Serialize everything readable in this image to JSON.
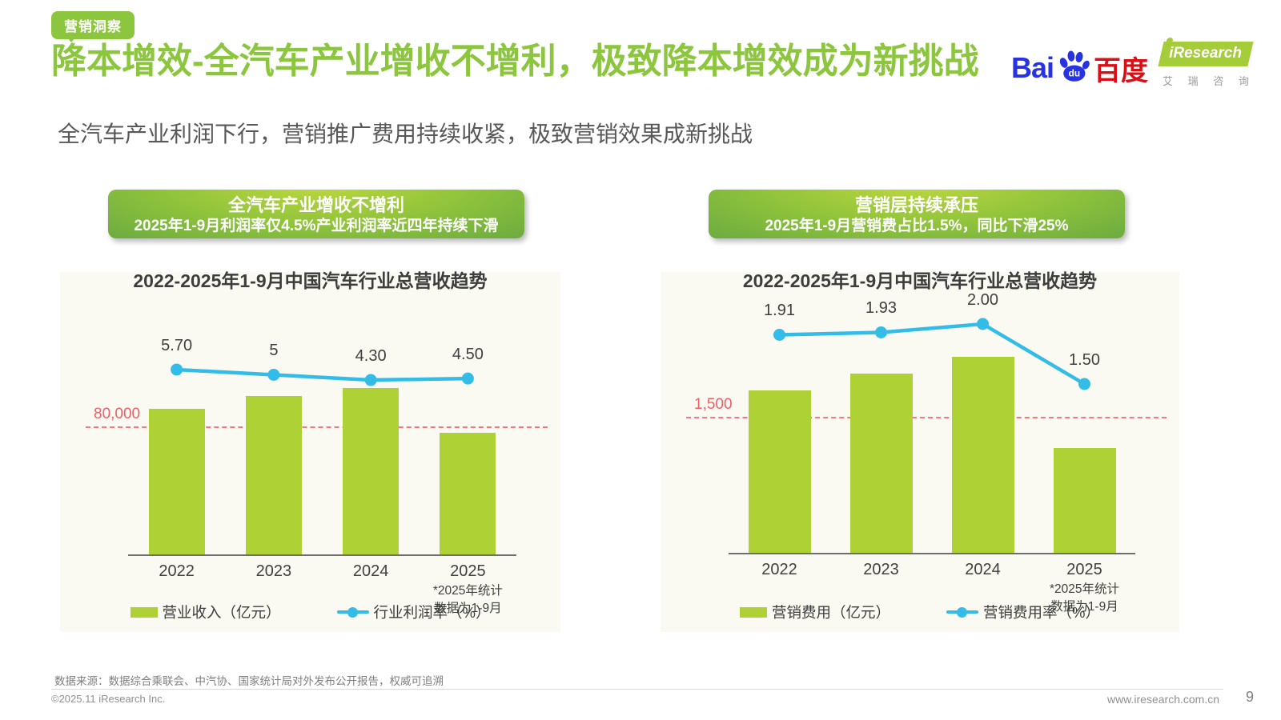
{
  "page": {
    "badge": "营销洞察",
    "title": "降本增效-全汽车产业增收不增利，极致降本增效成为新挑战",
    "subtitle": "全汽车产业利润下行，营销推广费用持续收紧，极致营销效果成新挑战",
    "source_note": "数据来源：数据综合乘联会、中汽协、国家统计局对外发布公开报告，权威可追溯",
    "copyright": "©2025.11 iResearch Inc.",
    "website": "www.iresearch.com.cn",
    "page_number": "9"
  },
  "logos": {
    "baidu": {
      "bai": "Bai",
      "du": "du",
      "cn": "百度"
    },
    "iresearch": {
      "name": "iResearch",
      "cn": [
        "艾",
        "瑞",
        "咨",
        "询"
      ]
    }
  },
  "colors": {
    "accent_green": "#8cc63e",
    "header_gradient_top": "#bcd73e",
    "header_gradient_bottom": "#6cab40",
    "panel_bg": "#fafaf2",
    "bar_green": "#aed136",
    "line_cyan": "#33bce8",
    "ref_dash_pink": "#f4787f",
    "ref_label_red": "#ee5f68",
    "baidu_blue": "#2732e0",
    "baidu_red": "#db0e16",
    "iresearch_green": "#a5cd39"
  },
  "panels": [
    {
      "header_line1": "全汽车产业增收不增利",
      "header_line2": "2025年1-9月利润率仅4.5%产业利润率近四年持续下滑",
      "chart_title": "2022-2025年1-9月中国汽车行业总营收趋势",
      "footnote_line1": "*2025年统计",
      "footnote_line2": "数据为1-9月",
      "legend_bar": "营业收入（亿元）",
      "legend_line": "行业利润率（%）"
    },
    {
      "header_line1": "营销层持续承压",
      "header_line2": "2025年1-9月营销费占比1.5%，同比下滑25%",
      "chart_title": "2022-2025年1-9月中国汽车行业总营收趋势",
      "footnote_line1": "*2025年统计",
      "footnote_line2": "数据为1-9月",
      "legend_bar": "营销费用（亿元）",
      "legend_line": "营销费用率（%）"
    }
  ],
  "chart_data": [
    {
      "type": "bar",
      "combo": "bar+line",
      "title": "2022-2025年1-9月中国汽车行业总营收趋势",
      "categories": [
        "2022",
        "2023",
        "2024",
        "2025"
      ],
      "bar_series": {
        "name": "营业收入（亿元）",
        "values_estimated": [
          91000,
          99000,
          104000,
          76000
        ],
        "note": "bars unlabeled in chart; values estimated from the 80,000 reference line"
      },
      "line_series": {
        "name": "行业利润率（%）",
        "values": [
          5.7,
          5,
          4.3,
          4.5
        ],
        "labels": [
          "5.70",
          "5",
          "4.30",
          "4.50"
        ]
      },
      "ref_line": {
        "value": 80000,
        "label": "80,000"
      },
      "footnote": "*2025年统计数据为1-9月",
      "legend_position": "bottom",
      "grid": false
    },
    {
      "type": "bar",
      "combo": "bar+line",
      "title": "2022-2025年1-9月中国汽车行业总营收趋势",
      "categories": [
        "2022",
        "2023",
        "2024",
        "2025"
      ],
      "bar_series": {
        "name": "营销费用（亿元）",
        "values_estimated": [
          1790,
          1980,
          2160,
          1160
        ],
        "note": "bars unlabeled in chart; values estimated from the 1,500 reference line"
      },
      "line_series": {
        "name": "营销费用率（%）",
        "values": [
          1.91,
          1.93,
          2.0,
          1.5
        ],
        "labels": [
          "1.91",
          "1.93",
          "2.00",
          "1.50"
        ]
      },
      "ref_line": {
        "value": 1500,
        "label": "1,500"
      },
      "footnote": "*2025年统计数据为1-9月",
      "legend_position": "bottom",
      "grid": false
    }
  ]
}
